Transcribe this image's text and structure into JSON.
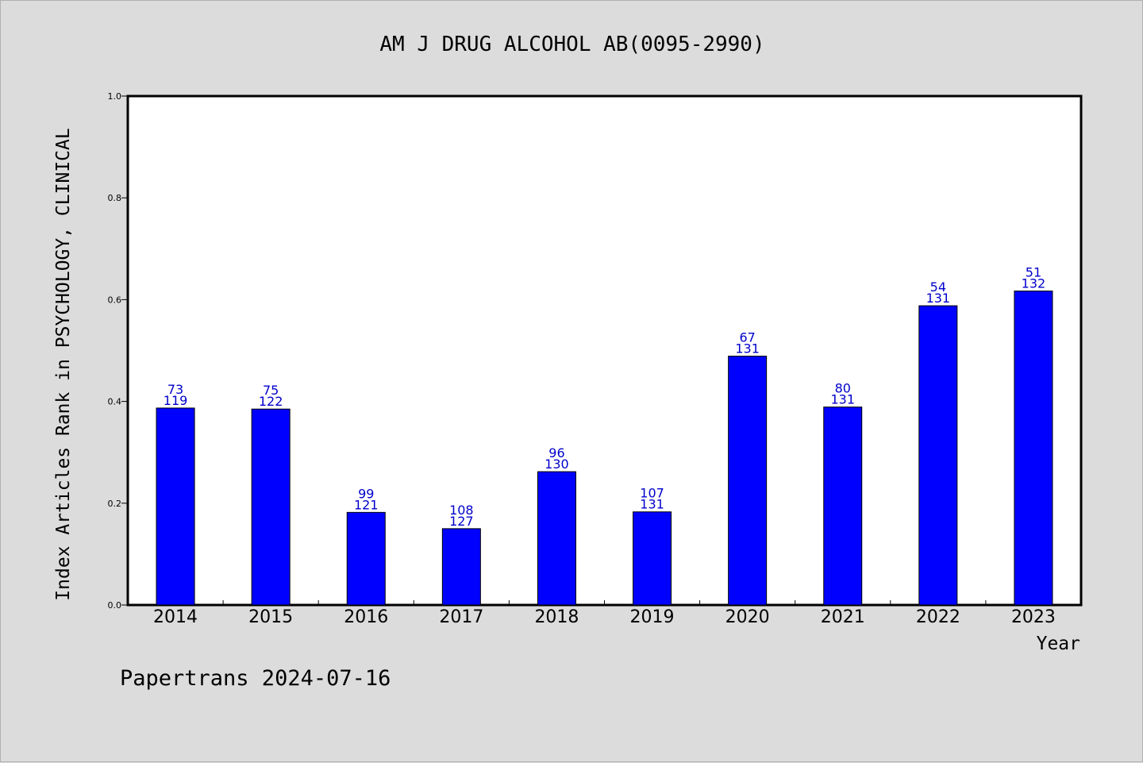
{
  "footer": "Papertrans 2024-07-16",
  "colors": {
    "bar": "#0000ff",
    "bar_stroke": "#000000",
    "label": "#0000cc",
    "background": "#dcdcdc",
    "plot": "#ffffff"
  },
  "chart_data": {
    "type": "bar",
    "title": "AM J DRUG ALCOHOL AB(0095-2990)",
    "xlabel": "Year",
    "ylabel": "Index Articles Rank in PSYCHOLOGY, CLINICAL",
    "categories": [
      "2014",
      "2015",
      "2016",
      "2017",
      "2018",
      "2019",
      "2020",
      "2021",
      "2022",
      "2023"
    ],
    "values": [
      0.387,
      0.385,
      0.182,
      0.15,
      0.262,
      0.183,
      0.489,
      0.389,
      0.588,
      0.617
    ],
    "rank": [
      73,
      75,
      99,
      108,
      96,
      107,
      67,
      80,
      54,
      51
    ],
    "total": [
      119,
      122,
      121,
      127,
      130,
      131,
      131,
      131,
      131,
      132
    ],
    "ylim": [
      0.0,
      1.0
    ],
    "yticks": [
      "0.0",
      "0.2",
      "0.4",
      "0.6",
      "0.8",
      "1.0"
    ],
    "grid": false,
    "legend": "none"
  }
}
